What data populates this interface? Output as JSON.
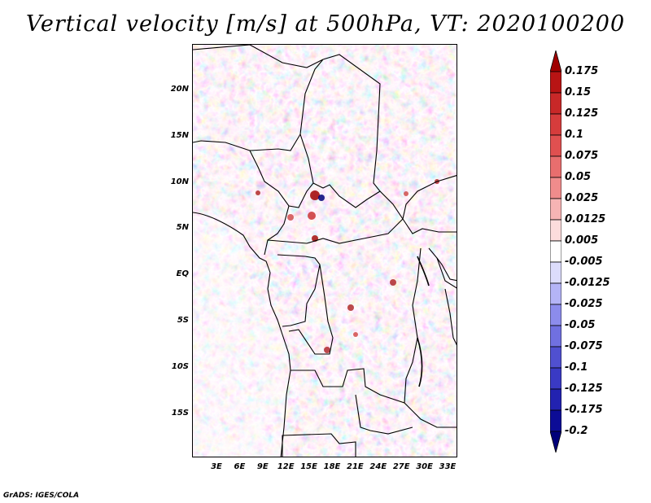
{
  "title": "Vertical velocity [m/s] at 500hPa, VT: 2020100200",
  "footer": "GrADS: IGES/COLA",
  "map": {
    "variable": "Vertical velocity",
    "units": "m/s",
    "level": "500hPa",
    "valid_time": "2020100200",
    "lat_labels": [
      "20N",
      "15N",
      "10N",
      "5N",
      "EQ",
      "5S",
      "10S",
      "15S"
    ],
    "lon_labels": [
      "3E",
      "6E",
      "9E",
      "12E",
      "15E",
      "18E",
      "21E",
      "24E",
      "27E",
      "30E",
      "33E"
    ]
  },
  "colorbar": {
    "labels": [
      "0.175",
      "0.15",
      "0.125",
      "0.1",
      "0.075",
      "0.05",
      "0.025",
      "0.0125",
      "0.005",
      "-0.005",
      "-0.0125",
      "-0.025",
      "-0.05",
      "-0.075",
      "-0.1",
      "-0.125",
      "-0.175",
      "-0.2"
    ],
    "colors": [
      "#a00000",
      "#b81414",
      "#c82828",
      "#d63c3c",
      "#e05050",
      "#e86e6e",
      "#f08c8c",
      "#f6b4b4",
      "#fcdcdc",
      "#ffffff",
      "#dcdcfc",
      "#b4b4f6",
      "#8c8cec",
      "#7070e0",
      "#5050d0",
      "#3a3ac4",
      "#2222b0",
      "#0c0c96",
      "#00007a"
    ]
  }
}
